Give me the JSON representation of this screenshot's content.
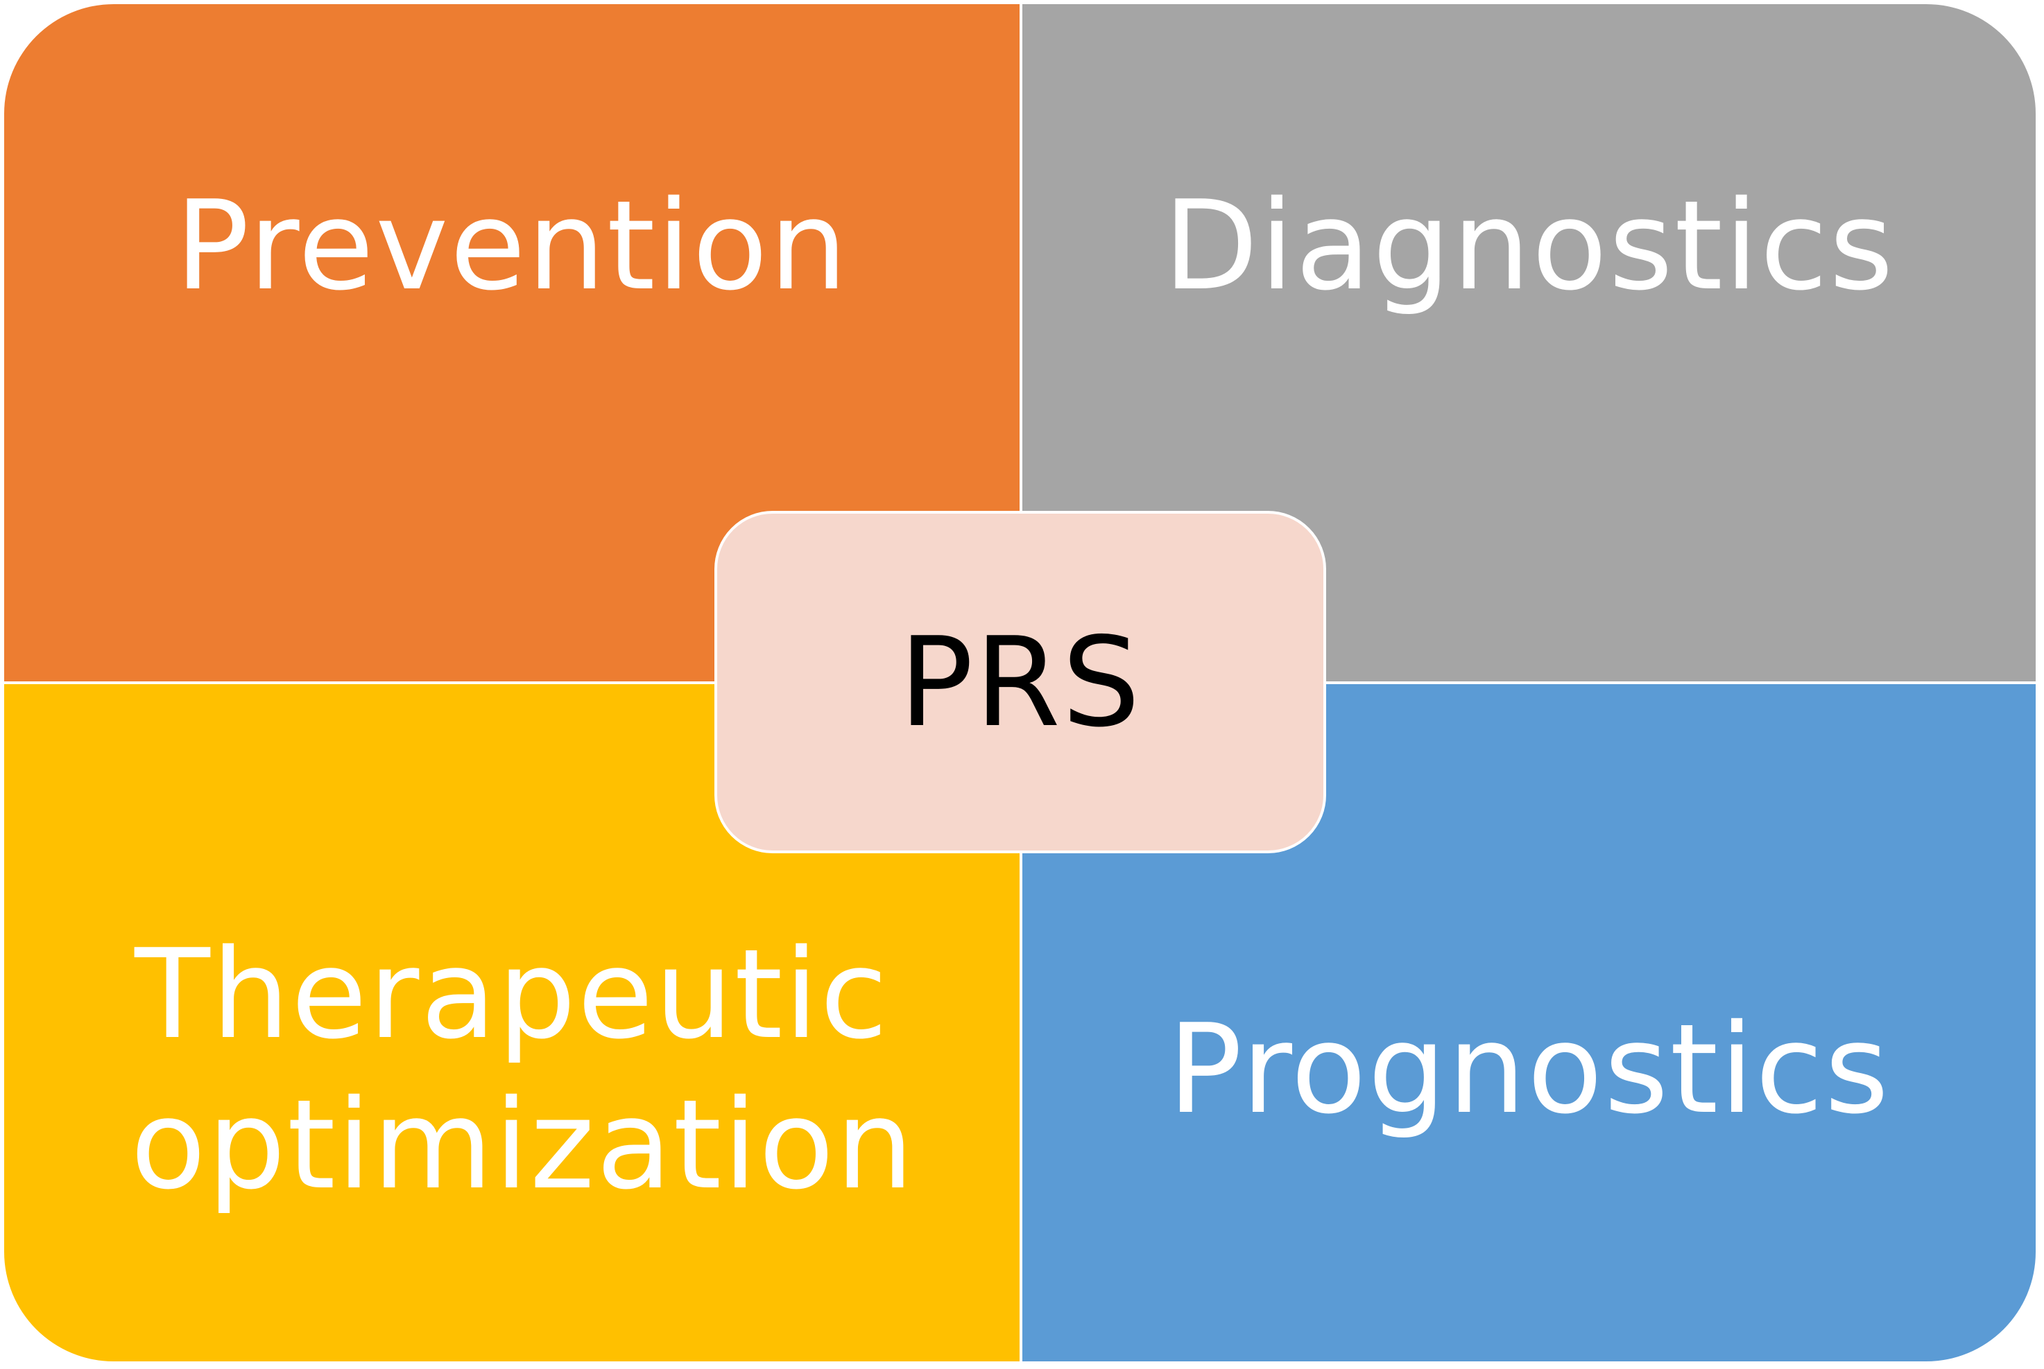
{
  "diagram": {
    "center": {
      "label": "PRS",
      "color": "#F6D7CC"
    },
    "quadrants": {
      "top_left": {
        "label": "Prevention",
        "color": "#ED7D31"
      },
      "top_right": {
        "label": "Diagnostics",
        "color": "#A5A5A5"
      },
      "bottom_left": {
        "label": "Therapeutic optimization",
        "color": "#FFC000"
      },
      "bottom_right": {
        "label": "Prognostics",
        "color": "#5B9BD5"
      }
    }
  }
}
